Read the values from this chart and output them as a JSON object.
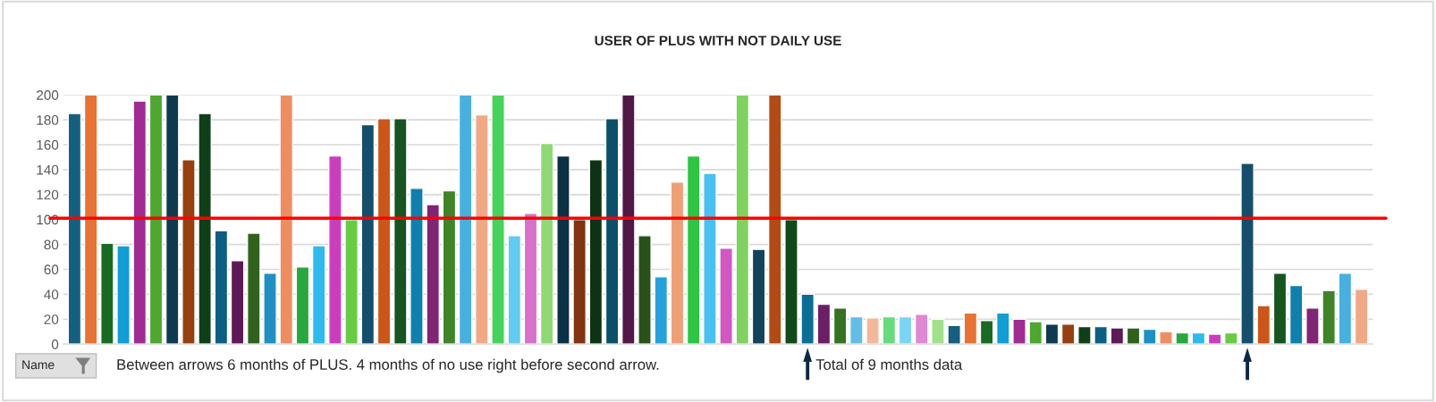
{
  "chart_data": {
    "type": "bar",
    "title": "USER OF PLUS WITH NOT DAILY USE",
    "categories": [
      null,
      null,
      null,
      null,
      null,
      null,
      null,
      null,
      null,
      null,
      null,
      null,
      null,
      null,
      null,
      null,
      null,
      null,
      null,
      null,
      null,
      null,
      null,
      null,
      null,
      null,
      null,
      null,
      null,
      null,
      null,
      null,
      null,
      null,
      null,
      null,
      null,
      null,
      null,
      null,
      null,
      null,
      null,
      null,
      null,
      null,
      null,
      null,
      null,
      null,
      null,
      null,
      null,
      null,
      null,
      null,
      null,
      null,
      null,
      null,
      null,
      null,
      null,
      null,
      null,
      null,
      null,
      null,
      null,
      null,
      null,
      null,
      null,
      null,
      null,
      null,
      null,
      null,
      null,
      null
    ],
    "values": [
      185,
      200,
      81,
      79,
      195,
      200,
      200,
      148,
      185,
      91,
      67,
      89,
      57,
      200,
      62,
      79,
      151,
      100,
      176,
      181,
      181,
      125,
      112,
      123,
      200,
      184,
      200,
      87,
      105,
      161,
      151,
      100,
      148,
      181,
      200,
      87,
      54,
      130,
      151,
      137,
      77,
      200,
      76,
      200,
      100,
      40,
      32,
      29,
      22,
      21,
      22,
      22,
      24,
      20,
      15,
      25,
      19,
      25,
      20,
      18,
      16,
      16,
      14,
      14,
      13,
      13,
      12,
      10,
      9,
      9,
      8,
      9,
      145,
      31,
      57,
      47,
      29,
      43,
      57,
      44
    ],
    "colors": [
      "#16607f",
      "#e97132",
      "#196b24",
      "#0f9ed5",
      "#a02b93",
      "#4ea72e",
      "#0e3a4f",
      "#964010",
      "#0f3f18",
      "#0a5f82",
      "#5e1a56",
      "#31621d",
      "#1f90c5",
      "#ee8e60",
      "#26a83c",
      "#2dbaee",
      "#cc3dbd",
      "#68cc43",
      "#144e6a",
      "#cc5617",
      "#165520",
      "#0e80ad",
      "#822476",
      "#3f8426",
      "#47b0e0",
      "#f1a985",
      "#45d35a",
      "#61cbf3",
      "#d871c9",
      "#8fd975",
      "#0c3045",
      "#803410",
      "#0e3314",
      "#0b506b",
      "#511847",
      "#29511a",
      "#25a2db",
      "#f09e73",
      "#2cc642",
      "#48c1f2",
      "#d257c3",
      "#7ed35f",
      "#11435b",
      "#b24b14",
      "#104a1b",
      "#0a6d95",
      "#6d1f65",
      "#357222",
      "#63bde6",
      "#f4b899",
      "#67dc7a",
      "#7bd4f6",
      "#df88d4",
      "#a1e18a",
      "#165f80",
      "#e97132",
      "#196b24",
      "#0f9ed5",
      "#a02b93",
      "#4ea72e",
      "#0e3a4f",
      "#964010",
      "#0f3f18",
      "#0a5f82",
      "#5e1a56",
      "#31621d",
      "#1f90c5",
      "#ee8e60",
      "#26a83c",
      "#2dbaee",
      "#cc3dbd",
      "#68cc43",
      "#144e6a",
      "#cc5617",
      "#165520",
      "#0e80ad",
      "#822476",
      "#3f8426",
      "#47b0e0",
      "#f1a985"
    ],
    "ylim": [
      0,
      200
    ],
    "yticks": [
      0,
      20,
      40,
      60,
      80,
      100,
      120,
      140,
      160,
      180,
      200
    ],
    "grid": "y",
    "tick_labels": "y",
    "ref_lines": [
      {
        "axis": "y",
        "value": 101,
        "color": "#ff0000"
      }
    ],
    "annotations": [
      "Name",
      "Between arrows 6 months of PLUS. 4 months of no use right before second arrow.",
      "Total of 9 months data"
    ]
  }
}
